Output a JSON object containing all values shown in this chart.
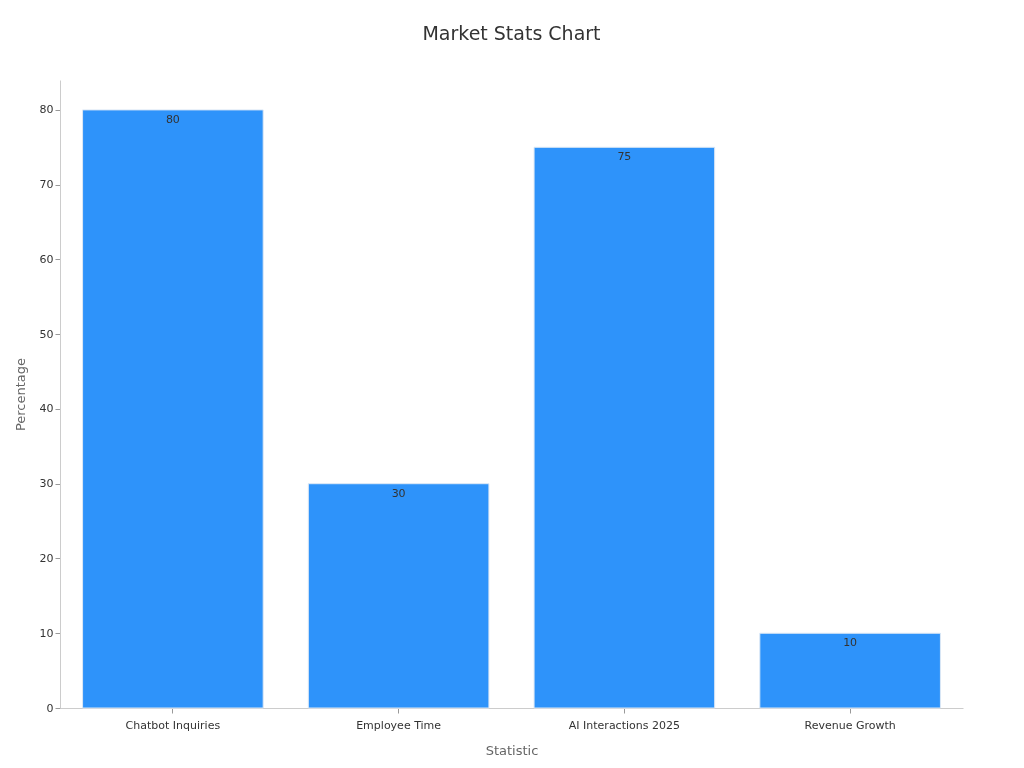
{
  "chart_data": {
    "type": "bar",
    "title": "Market Stats Chart",
    "xlabel": "Statistic",
    "ylabel": "Percentage",
    "categories": [
      "Chatbot Inquiries",
      "Employee Time",
      "AI Interactions 2025",
      "Revenue Growth"
    ],
    "values": [
      80,
      30,
      75,
      10
    ],
    "color": "#2e93fa",
    "ylim": [
      0,
      84
    ],
    "yticks": [
      0,
      10,
      20,
      30,
      40,
      50,
      60,
      70,
      80
    ],
    "grid": false,
    "data_labels": true
  }
}
